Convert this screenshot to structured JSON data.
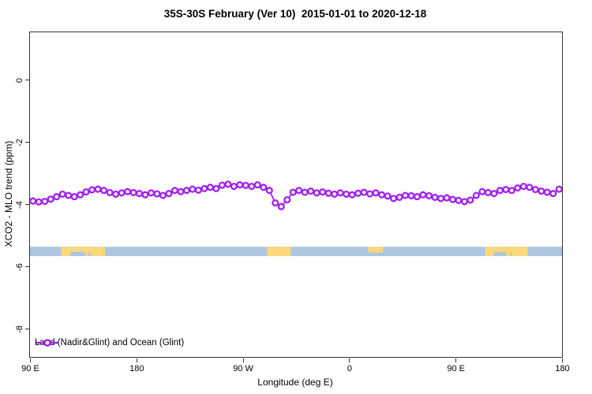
{
  "title": "35S-30S February (Ver 10)  2015-01-01 to 2020-12-18",
  "axis_color": "#333333",
  "chart_data": {
    "type": "line",
    "title": "35S-30S February (Ver 10)  2015-01-01 to 2020-12-18",
    "xlabel": "Longitude (deg E)",
    "ylabel": "XCO2 - MLO trend (ppm)",
    "xlim": [
      90,
      540
    ],
    "ylim": [
      -8.91,
      1.52
    ],
    "grid": false,
    "x_ticks": [
      {
        "value": 90,
        "label": "90 E"
      },
      {
        "value": 180,
        "label": "180"
      },
      {
        "value": 270,
        "label": "90 W"
      },
      {
        "value": 360,
        "label": "0"
      },
      {
        "value": 450,
        "label": "90 E"
      },
      {
        "value": 540,
        "label": "180"
      }
    ],
    "y_ticks": [
      {
        "value": 0,
        "label": "0"
      },
      {
        "value": -2,
        "label": "-2"
      },
      {
        "value": -4,
        "label": "-4"
      },
      {
        "value": -6,
        "label": "-6"
      },
      {
        "value": -8,
        "label": "-8"
      }
    ],
    "legend": {
      "position": "bottom-left"
    },
    "series": [
      {
        "name": "Land (Nadir&Glint) and Ocean (Glint)",
        "color": "#A020F0",
        "marker": "open-circle",
        "x": [
          92.5,
          97.5,
          102.5,
          107.5,
          112.5,
          117.5,
          122.5,
          127.5,
          132.5,
          137.5,
          142.5,
          147.5,
          152.5,
          157.5,
          162.5,
          167.5,
          172.5,
          177.5,
          182.5,
          187.5,
          192.5,
          197.5,
          202.5,
          207.5,
          212.5,
          217.5,
          222.5,
          227.5,
          232.5,
          237.5,
          242.5,
          247.5,
          252.5,
          257.5,
          262.5,
          267.5,
          272.5,
          277.5,
          282.5,
          287.5,
          292.5,
          297.5,
          302.5,
          307.5,
          312.5,
          317.5,
          322.5,
          327.5,
          332.5,
          337.5,
          342.5,
          347.5,
          352.5,
          357.5,
          362.5,
          367.5,
          372.5,
          377.5,
          382.5,
          387.5,
          392.5,
          397.5,
          402.5,
          407.5,
          412.5,
          417.5,
          422.5,
          427.5,
          432.5,
          437.5,
          442.5,
          447.5,
          452.5,
          457.5,
          462.5,
          467.5,
          472.5,
          477.5,
          482.5,
          487.5,
          492.5,
          497.5,
          502.5,
          507.5,
          512.5,
          517.5,
          522.5,
          527.5,
          532.5,
          537.5
        ],
        "y": [
          -3.9,
          -3.93,
          -3.91,
          -3.84,
          -3.76,
          -3.68,
          -3.72,
          -3.76,
          -3.7,
          -3.61,
          -3.54,
          -3.52,
          -3.56,
          -3.63,
          -3.68,
          -3.64,
          -3.6,
          -3.63,
          -3.66,
          -3.7,
          -3.64,
          -3.67,
          -3.72,
          -3.66,
          -3.56,
          -3.6,
          -3.56,
          -3.52,
          -3.55,
          -3.5,
          -3.46,
          -3.5,
          -3.39,
          -3.36,
          -3.43,
          -3.38,
          -3.4,
          -3.43,
          -3.38,
          -3.46,
          -3.56,
          -3.96,
          -4.08,
          -3.86,
          -3.62,
          -3.56,
          -3.62,
          -3.58,
          -3.64,
          -3.61,
          -3.65,
          -3.68,
          -3.64,
          -3.68,
          -3.7,
          -3.65,
          -3.62,
          -3.67,
          -3.64,
          -3.7,
          -3.74,
          -3.82,
          -3.78,
          -3.72,
          -3.73,
          -3.76,
          -3.7,
          -3.73,
          -3.78,
          -3.82,
          -3.8,
          -3.85,
          -3.88,
          -3.92,
          -3.87,
          -3.72,
          -3.6,
          -3.63,
          -3.66,
          -3.56,
          -3.53,
          -3.56,
          -3.48,
          -3.43,
          -3.46,
          -3.53,
          -3.58,
          -3.62,
          -3.66,
          -3.52
        ]
      }
    ],
    "map_strip": {
      "description": "ocean/land strip for latitude band 35S-30S",
      "y_top": -5.37,
      "y_bottom": -5.67,
      "ocean_color": "#AEC6E0",
      "land_color": "#FBD87C",
      "land_segments": [
        {
          "from": 116.5,
          "to": 153.5,
          "height_frac": 1.0,
          "bites": [
            {
              "from": 124.0,
              "to": 137.0,
              "depth": 0.45
            },
            {
              "from": 139.5,
              "to": 141.5,
              "depth": 0.4
            }
          ]
        },
        {
          "from": 290.5,
          "to": 310.5,
          "height_frac": 1.0,
          "bites": []
        },
        {
          "from": 376.0,
          "to": 388.5,
          "height_frac": 0.6,
          "bites": []
        },
        {
          "from": 475.0,
          "to": 511.0,
          "height_frac": 1.0,
          "bites": [
            {
              "from": 482.0,
              "to": 493.0,
              "depth": 0.42
            },
            {
              "from": 496.5,
              "to": 498.0,
              "depth": 0.38
            }
          ]
        }
      ]
    }
  }
}
